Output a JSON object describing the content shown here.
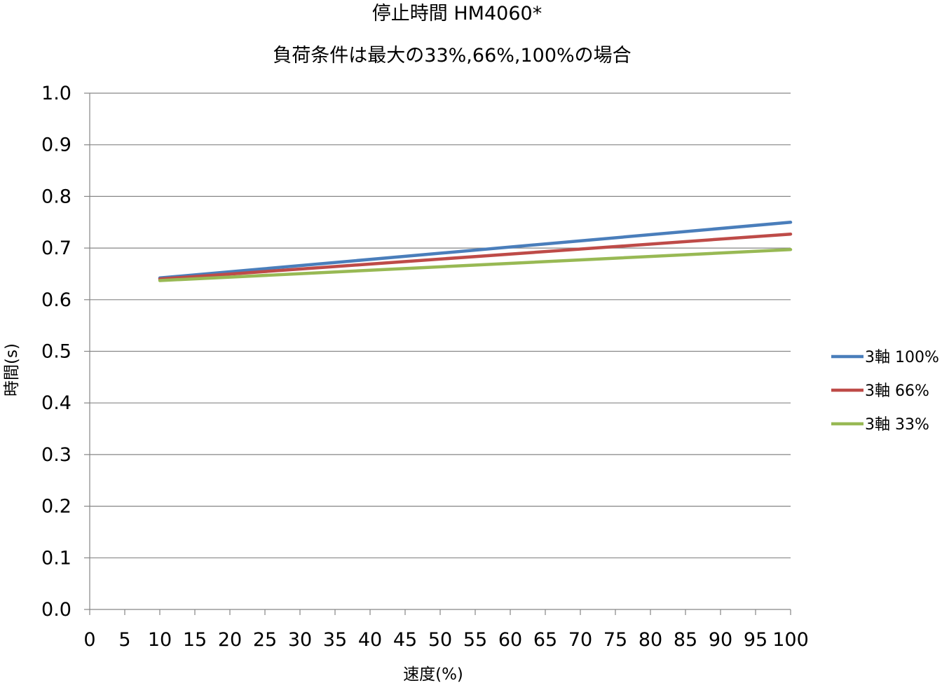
{
  "chart_data": {
    "type": "line",
    "title_lines": [
      "停止時間 HM4060*",
      "負荷条件は最大の33%,66%,100%の場合"
    ],
    "xlabel": "速度(%)",
    "ylabel": "時間(s)",
    "xlim": [
      0,
      100
    ],
    "ylim": [
      0,
      1.0
    ],
    "x_ticks": [
      "0",
      "5",
      "10",
      "15",
      "20",
      "25",
      "30",
      "35",
      "40",
      "45",
      "50",
      "55",
      "60",
      "65",
      "70",
      "75",
      "80",
      "85",
      "90",
      "95",
      "100"
    ],
    "x_tick_values": [
      0,
      5,
      10,
      15,
      20,
      25,
      30,
      35,
      40,
      45,
      50,
      55,
      60,
      65,
      70,
      75,
      80,
      85,
      90,
      95,
      100
    ],
    "y_ticks": [
      "0.0",
      "0.1",
      "0.2",
      "0.3",
      "0.4",
      "0.5",
      "0.6",
      "0.7",
      "0.8",
      "0.9",
      "1.0"
    ],
    "y_tick_values": [
      0,
      0.1,
      0.2,
      0.3,
      0.4,
      0.5,
      0.6,
      0.7,
      0.8,
      0.9,
      1.0
    ],
    "grid": "horizontal",
    "legend_position": "right",
    "x": [
      10,
      100
    ],
    "series": [
      {
        "name": "3軸 100%",
        "color": "#4A7EBB",
        "values": [
          0.642,
          0.75
        ]
      },
      {
        "name": "3軸 66%",
        "color": "#BE4B48",
        "values": [
          0.64,
          0.727
        ]
      },
      {
        "name": "3軸 33%",
        "color": "#98B954",
        "values": [
          0.637,
          0.697
        ]
      }
    ]
  }
}
